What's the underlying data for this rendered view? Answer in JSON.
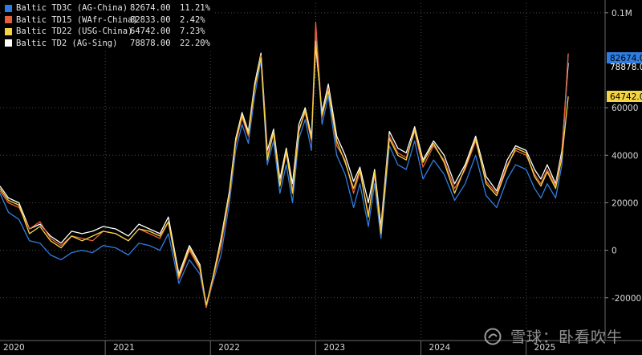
{
  "legend": [
    {
      "name": "Baltic TD3C (AG-China)",
      "value": "82674.00",
      "pct": "11.21%",
      "color": "#2f7de1"
    },
    {
      "name": "Baltic TD15 (WAfr-China)",
      "value": "82833.00",
      "pct": "2.42%",
      "color": "#e8603a"
    },
    {
      "name": "Baltic TD22 (USG-China)",
      "value": "64742.00",
      "pct": "7.23%",
      "color": "#f5d442"
    },
    {
      "name": "Baltic TD2 (AG-Sing)",
      "value": "78878.00",
      "pct": "22.20%",
      "color": "#ffffff"
    }
  ],
  "watermark": "雪球：卧看吹牛",
  "chart_data": {
    "type": "line",
    "y_ticks": [
      {
        "value": 100000,
        "label": "0.1M"
      },
      {
        "value": 60000,
        "label": "60000"
      },
      {
        "value": 40000,
        "label": "40000"
      },
      {
        "value": 20000,
        "label": "20000"
      },
      {
        "value": 0,
        "label": "0"
      },
      {
        "value": -20000,
        "label": "-20000"
      }
    ],
    "x_ticks": [
      "2020",
      "2021",
      "2022",
      "2023",
      "2024",
      "2025"
    ],
    "ylim": [
      -38000,
      104000
    ],
    "xlim": [
      2020.0,
      2025.75
    ],
    "grid": true,
    "legend_position": "top-left",
    "last_value_labels": [
      {
        "text": "82674.0",
        "value": 82674,
        "color": "#2f7de1"
      },
      {
        "text": "78878.0",
        "value": 78878,
        "color": "#ffffff"
      },
      {
        "text": "64742.0",
        "value": 64742,
        "color": "#f5d442"
      }
    ],
    "series": [
      {
        "name": "Baltic TD2 (AG-Sing)",
        "color": "#ffffff",
        "x": [
          2020.0,
          2020.08,
          2020.18,
          2020.28,
          2020.38,
          2020.48,
          2020.58,
          2020.68,
          2020.78,
          2020.88,
          2020.98,
          2021.1,
          2021.22,
          2021.32,
          2021.42,
          2021.52,
          2021.6,
          2021.7,
          2021.8,
          2021.9,
          2021.96,
          2022.02,
          2022.1,
          2022.18,
          2022.24,
          2022.3,
          2022.36,
          2022.42,
          2022.48,
          2022.54,
          2022.6,
          2022.66,
          2022.72,
          2022.78,
          2022.84,
          2022.9,
          2022.96,
          2023.0,
          2023.06,
          2023.12,
          2023.2,
          2023.28,
          2023.36,
          2023.42,
          2023.5,
          2023.56,
          2023.62,
          2023.7,
          2023.78,
          2023.86,
          2023.94,
          2024.02,
          2024.12,
          2024.22,
          2024.32,
          2024.42,
          2024.52,
          2024.62,
          2024.72,
          2024.82,
          2024.9,
          2025.0,
          2025.08,
          2025.14,
          2025.2,
          2025.28,
          2025.34,
          2025.4
        ],
        "y": [
          27000,
          22000,
          20000,
          9000,
          11000,
          6000,
          3000,
          8000,
          7000,
          8000,
          10000,
          9000,
          6000,
          11000,
          9000,
          7000,
          14000,
          -10000,
          2000,
          -6000,
          -24000,
          -12000,
          5000,
          25000,
          47000,
          58000,
          50000,
          70000,
          83000,
          42000,
          51000,
          30000,
          43000,
          28000,
          53000,
          60000,
          48000,
          86000,
          58000,
          70000,
          48000,
          40000,
          29000,
          35000,
          20000,
          34000,
          10000,
          50000,
          43000,
          41000,
          52000,
          38000,
          46000,
          40000,
          28000,
          36000,
          48000,
          31000,
          25000,
          38000,
          44000,
          42000,
          34000,
          30000,
          36000,
          28000,
          42000,
          78878
        ]
      },
      {
        "name": "Baltic TD3C (AG-China)",
        "color": "#2f7de1",
        "x": [
          2020.0,
          2020.08,
          2020.18,
          2020.28,
          2020.38,
          2020.48,
          2020.58,
          2020.68,
          2020.78,
          2020.88,
          2020.98,
          2021.1,
          2021.22,
          2021.32,
          2021.42,
          2021.52,
          2021.6,
          2021.7,
          2021.8,
          2021.9,
          2021.96,
          2022.02,
          2022.1,
          2022.18,
          2022.24,
          2022.3,
          2022.36,
          2022.42,
          2022.48,
          2022.54,
          2022.6,
          2022.66,
          2022.72,
          2022.78,
          2022.84,
          2022.9,
          2022.96,
          2023.0,
          2023.06,
          2023.12,
          2023.2,
          2023.28,
          2023.36,
          2023.42,
          2023.5,
          2023.56,
          2023.62,
          2023.7,
          2023.78,
          2023.86,
          2023.94,
          2024.02,
          2024.12,
          2024.22,
          2024.32,
          2024.42,
          2024.52,
          2024.62,
          2024.72,
          2024.82,
          2024.9,
          2025.0,
          2025.08,
          2025.14,
          2025.2,
          2025.28,
          2025.34,
          2025.4
        ],
        "y": [
          24000,
          16000,
          13000,
          4000,
          3000,
          -2000,
          -4000,
          -1000,
          0,
          -1000,
          2000,
          1000,
          -2000,
          3000,
          2000,
          0,
          7000,
          -14000,
          -4000,
          -10000,
          -24000,
          -14000,
          -2000,
          20000,
          42000,
          53000,
          45000,
          65000,
          80000,
          36000,
          46000,
          24000,
          36000,
          20000,
          47000,
          55000,
          42000,
          92000,
          53000,
          65000,
          40000,
          32000,
          18000,
          28000,
          10000,
          28000,
          5000,
          44000,
          36000,
          34000,
          46000,
          30000,
          38000,
          32000,
          21000,
          28000,
          40000,
          23000,
          18000,
          30000,
          36000,
          34000,
          26000,
          22000,
          28000,
          22000,
          36000,
          82674
        ]
      },
      {
        "name": "Baltic TD15 (WAfr-China)",
        "color": "#e8603a",
        "x": [
          2020.0,
          2020.08,
          2020.18,
          2020.28,
          2020.38,
          2020.48,
          2020.58,
          2020.68,
          2020.78,
          2020.88,
          2020.98,
          2021.1,
          2021.22,
          2021.32,
          2021.42,
          2021.52,
          2021.6,
          2021.7,
          2021.8,
          2021.9,
          2021.96,
          2022.02,
          2022.1,
          2022.18,
          2022.24,
          2022.3,
          2022.36,
          2022.42,
          2022.48,
          2022.54,
          2022.6,
          2022.66,
          2022.72,
          2022.78,
          2022.84,
          2022.9,
          2022.96,
          2023.0,
          2023.06,
          2023.12,
          2023.2,
          2023.28,
          2023.36,
          2023.42,
          2023.5,
          2023.56,
          2023.62,
          2023.7,
          2023.78,
          2023.86,
          2023.94,
          2024.02,
          2024.12,
          2024.22,
          2024.32,
          2024.42,
          2024.52,
          2024.62,
          2024.72,
          2024.82,
          2024.9,
          2025.0,
          2025.08,
          2025.14,
          2025.2,
          2025.28,
          2025.34,
          2025.4
        ],
        "y": [
          25000,
          20000,
          18000,
          9000,
          12000,
          5000,
          2000,
          6000,
          5000,
          4000,
          8000,
          7000,
          4000,
          9000,
          7000,
          5000,
          12000,
          -12000,
          0,
          -8000,
          -24000,
          -13000,
          2000,
          23000,
          45000,
          56000,
          48000,
          68000,
          82000,
          40000,
          49000,
          28000,
          41000,
          25000,
          51000,
          58000,
          46000,
          96000,
          56000,
          68000,
          44000,
          38000,
          24000,
          33000,
          15000,
          32000,
          8000,
          48000,
          41000,
          39000,
          50000,
          35000,
          44000,
          38000,
          26000,
          34000,
          46000,
          29000,
          24000,
          36000,
          42000,
          40000,
          32000,
          28000,
          34000,
          27000,
          40000,
          82833
        ]
      },
      {
        "name": "Baltic TD22 (USG-China)",
        "color": "#f5d442",
        "x": [
          2020.0,
          2020.08,
          2020.18,
          2020.28,
          2020.38,
          2020.48,
          2020.58,
          2020.68,
          2020.78,
          2020.88,
          2020.98,
          2021.1,
          2021.22,
          2021.32,
          2021.42,
          2021.52,
          2021.6,
          2021.7,
          2021.8,
          2021.9,
          2021.96,
          2022.02,
          2022.1,
          2022.18,
          2022.24,
          2022.3,
          2022.36,
          2022.42,
          2022.48,
          2022.54,
          2022.6,
          2022.66,
          2022.72,
          2022.78,
          2022.84,
          2022.9,
          2022.96,
          2023.0,
          2023.06,
          2023.12,
          2023.2,
          2023.28,
          2023.36,
          2023.42,
          2023.5,
          2023.56,
          2023.62,
          2023.7,
          2023.78,
          2023.86,
          2023.94,
          2024.02,
          2024.12,
          2024.22,
          2024.32,
          2024.42,
          2024.52,
          2024.62,
          2024.72,
          2024.82,
          2024.9,
          2025.0,
          2025.08,
          2025.14,
          2025.2,
          2025.28,
          2025.34,
          2025.4
        ],
        "y": [
          26000,
          21000,
          19000,
          7000,
          10000,
          4000,
          1000,
          6000,
          4000,
          6000,
          8000,
          7000,
          4000,
          9000,
          8000,
          6000,
          12000,
          -11000,
          1000,
          -7000,
          -23000,
          -12000,
          4000,
          24000,
          46000,
          57000,
          49000,
          69000,
          81000,
          38000,
          50000,
          27000,
          42000,
          24000,
          50000,
          59000,
          47000,
          88000,
          57000,
          67000,
          46000,
          37000,
          26000,
          34000,
          14000,
          33000,
          7000,
          47000,
          40000,
          38000,
          51000,
          37000,
          45000,
          37000,
          24000,
          35000,
          47000,
          28000,
          23000,
          35000,
          43000,
          41000,
          31000,
          27000,
          33000,
          26000,
          39000,
          64742
        ]
      }
    ]
  }
}
